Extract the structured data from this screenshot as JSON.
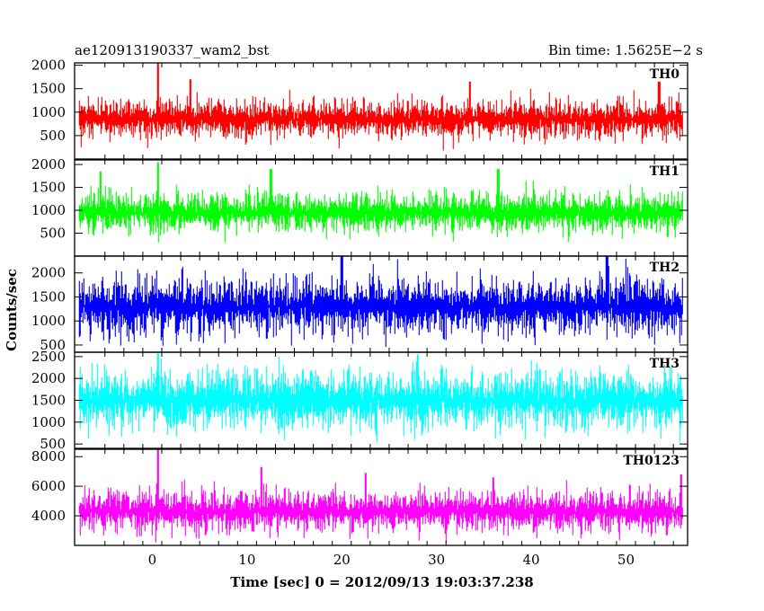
{
  "chart_data": {
    "type": "line",
    "title": "ae120913190337_wam2_bst",
    "bin_time_label": "Bin time: 1.5625E−2 s",
    "xlabel": "Time [sec] 0 = 2012/09/13 19:03:37.238",
    "ylabel": "Counts/sec",
    "xlim": [
      -8.2,
      56.5
    ],
    "x_data_range": [
      -7.7,
      56.0
    ],
    "x_ticks": [
      0,
      10,
      20,
      30,
      40,
      50
    ],
    "x_tick_labels": [
      "0",
      "10",
      "20",
      "30",
      "40",
      "50"
    ],
    "grid": false,
    "panels": [
      {
        "name": "TH0",
        "color": "#ff0000",
        "ylim": [
          0,
          2050
        ],
        "y_ticks": [
          500,
          1000,
          1500,
          2000
        ],
        "y_tick_labels": [
          "500",
          "1000",
          "1500",
          "2000"
        ],
        "baseline": 850,
        "noise_amplitude": 380,
        "floor": 120,
        "spikes": [
          {
            "x": 0.6,
            "y": 2050
          },
          {
            "x": 4.0,
            "y": 1700
          },
          {
            "x": 33.5,
            "y": 1650
          },
          {
            "x": 53.5,
            "y": 1650
          }
        ]
      },
      {
        "name": "TH1",
        "color": "#00ff00",
        "ylim": [
          0,
          2100
        ],
        "y_ticks": [
          500,
          1000,
          1500,
          2000
        ],
        "y_tick_labels": [
          "500",
          "1000",
          "1500",
          "2000"
        ],
        "baseline": 950,
        "noise_amplitude": 400,
        "floor": 150,
        "spikes": [
          {
            "x": 0.6,
            "y": 2050
          },
          {
            "x": -5.5,
            "y": 1850
          },
          {
            "x": 12.5,
            "y": 1900
          },
          {
            "x": 36.5,
            "y": 1900
          }
        ]
      },
      {
        "name": "TH2",
        "color": "#0000ff",
        "ylim": [
          350,
          2350
        ],
        "y_ticks": [
          500,
          1000,
          1500,
          2000
        ],
        "y_tick_labels": [
          "500",
          "1000",
          "1500",
          "2000"
        ],
        "baseline": 1300,
        "noise_amplitude": 560,
        "floor": 450,
        "spikes": [
          {
            "x": 20.0,
            "y": 2350
          },
          {
            "x": 48.0,
            "y": 2350
          }
        ]
      },
      {
        "name": "TH3",
        "color": "#00ffff",
        "ylim": [
          400,
          2600
        ],
        "y_ticks": [
          500,
          1000,
          1500,
          2000,
          2500
        ],
        "y_tick_labels": [
          "500",
          "1000",
          "1500",
          "2000",
          "2500"
        ],
        "baseline": 1500,
        "noise_amplitude": 620,
        "floor": 420,
        "spikes": [
          {
            "x": 0.6,
            "y": 2600
          },
          {
            "x": 28.0,
            "y": 2550
          }
        ]
      },
      {
        "name": "TH0123",
        "color": "#ff00ff",
        "ylim": [
          2000,
          8500
        ],
        "y_ticks": [
          4000,
          6000,
          8000
        ],
        "y_tick_labels": [
          "4000",
          "6000",
          "8000"
        ],
        "baseline": 4300,
        "noise_amplitude": 1250,
        "floor": 2150,
        "spikes": [
          {
            "x": 0.6,
            "y": 8500
          },
          {
            "x": 11.5,
            "y": 7300
          },
          {
            "x": 22.5,
            "y": 6900
          },
          {
            "x": 36.0,
            "y": 6600
          },
          {
            "x": 55.8,
            "y": 6800
          }
        ]
      }
    ]
  }
}
